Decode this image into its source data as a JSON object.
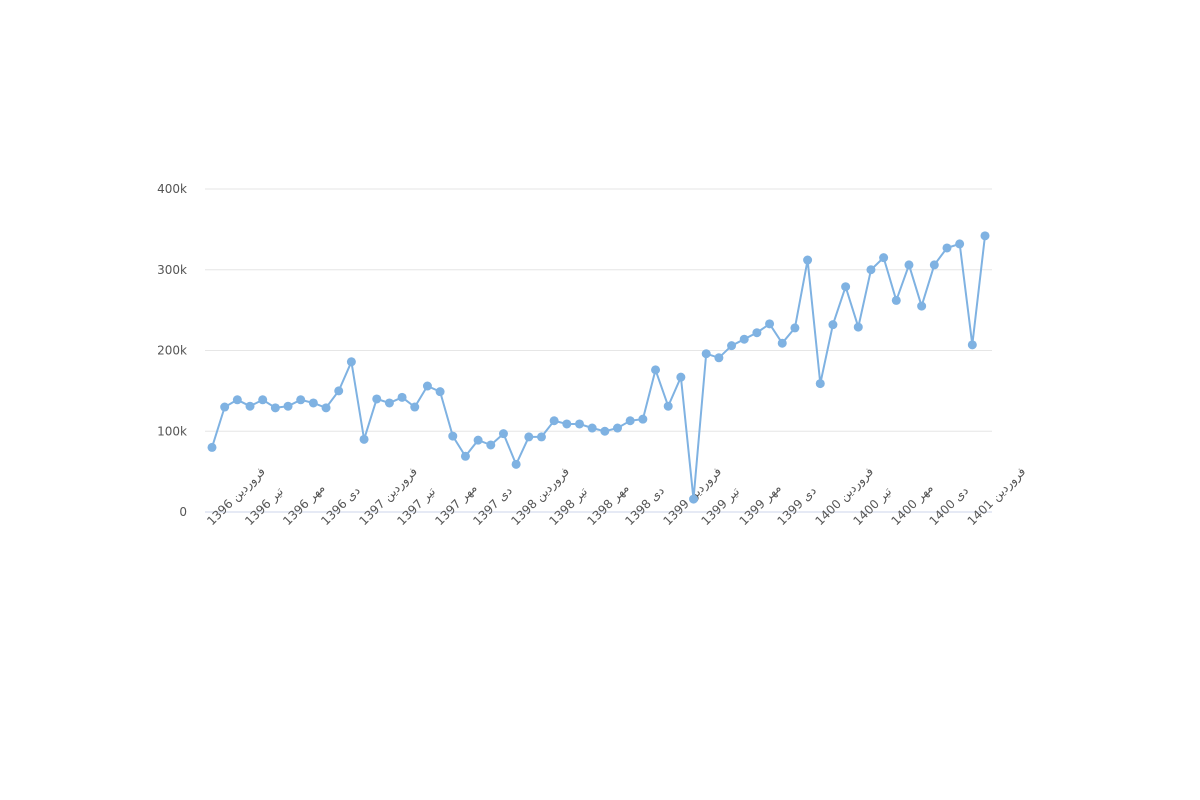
{
  "chart_data": {
    "type": "line",
    "categories": [
      "فروردین 1396",
      null,
      null,
      "تیر 1396",
      null,
      null,
      "مهر 1396",
      null,
      null,
      "دی 1396",
      null,
      null,
      "فروردین 1397",
      null,
      null,
      "تیر 1397",
      null,
      null,
      "مهر 1397",
      null,
      null,
      "دی 1397",
      null,
      null,
      "فروردین 1398",
      null,
      null,
      "تیر 1398",
      null,
      null,
      "مهر 1398",
      null,
      null,
      "دی 1398",
      null,
      null,
      "فروردین 1399",
      null,
      null,
      "تیر 1399",
      null,
      null,
      "مهر 1399",
      null,
      null,
      "دی 1399",
      null,
      null,
      "فروردین 1400",
      null,
      null,
      "تیر 1400",
      null,
      null,
      "مهر 1400",
      null,
      null,
      "دی 1400",
      null,
      null,
      "فروردین 1401",
      null
    ],
    "values": [
      80000,
      130000,
      139000,
      131000,
      139000,
      129000,
      131000,
      139000,
      135000,
      129000,
      150000,
      186000,
      90000,
      140000,
      135000,
      142000,
      130000,
      156000,
      149000,
      94000,
      69000,
      89000,
      83000,
      97000,
      59000,
      93000,
      93000,
      113000,
      109000,
      109000,
      104000,
      100000,
      104000,
      113000,
      115000,
      176000,
      131000,
      167000,
      16000,
      196000,
      191000,
      206000,
      214000,
      222000,
      233000,
      209000,
      228000,
      312000,
      159000,
      232000,
      279000,
      229000,
      300000,
      315000,
      262000,
      306000,
      255000,
      306000,
      327000,
      332000,
      207000,
      342000
    ],
    "color": "#7fb2e2",
    "ylim": [
      0,
      400000
    ],
    "yticks": [
      0,
      {
        "value": 100000,
        "label": "100k"
      },
      {
        "value": 200000,
        "label": "200k"
      },
      {
        "value": 300000,
        "label": "300k"
      },
      {
        "value": 400000,
        "label": "400k"
      }
    ],
    "grid": true
  }
}
